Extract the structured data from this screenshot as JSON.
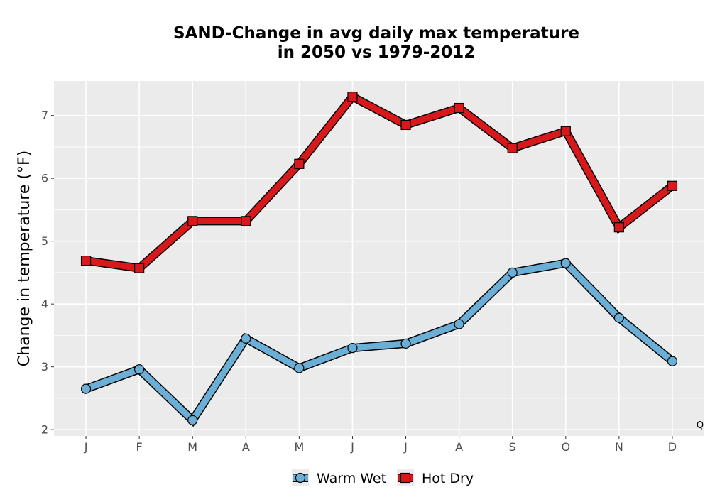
{
  "chart_data": {
    "type": "line",
    "title_lines": [
      "SAND-Change in avg daily max temperature",
      "in 2050 vs 1979-2012"
    ],
    "xlabel": "",
    "ylabel": "Change in temperature (°F)",
    "categories": [
      "J",
      "F",
      "M",
      "A",
      "M",
      "J",
      "J",
      "A",
      "S",
      "O",
      "N",
      "D"
    ],
    "ylim": [
      1.9,
      7.55
    ],
    "yticks": [
      2,
      3,
      4,
      5,
      6,
      7
    ],
    "grid": true,
    "legend_position": "bottom",
    "corner_note": "Q",
    "series": [
      {
        "name": "Warm Wet",
        "marker": "circle",
        "line_color": "#6baed6",
        "values": [
          2.65,
          2.96,
          2.15,
          3.45,
          2.98,
          3.3,
          3.37,
          3.68,
          4.5,
          4.65,
          3.78,
          3.09
        ]
      },
      {
        "name": "Hot Dry",
        "marker": "square",
        "line_color": "#d7191c",
        "values": [
          4.69,
          4.57,
          5.32,
          5.32,
          6.23,
          7.3,
          6.85,
          7.12,
          6.48,
          6.75,
          5.22,
          5.88
        ]
      }
    ]
  }
}
